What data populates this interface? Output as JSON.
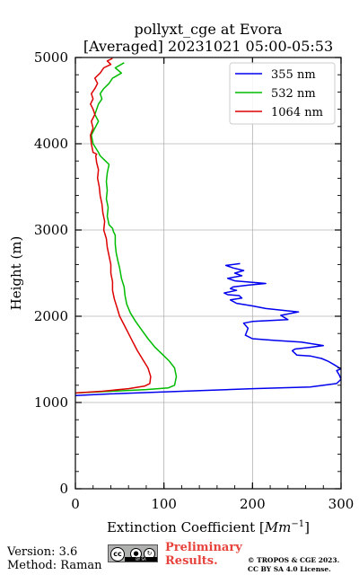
{
  "chart_data": {
    "type": "line",
    "title": "pollyxt_cge at Evora",
    "subtitle": "[Averaged] 20231021 05:00-05:53",
    "xlabel": "Extinction Coefficient [Mm⁻¹]",
    "ylabel": "Height (m)",
    "xlim": [
      0,
      300
    ],
    "ylim": [
      0,
      5000
    ],
    "xticks": [
      "0",
      "100",
      "200",
      "300"
    ],
    "yticks": [
      "0",
      "1000",
      "2000",
      "3000",
      "4000",
      "5000"
    ],
    "grid": true,
    "legend_position": "top-right",
    "series": [
      {
        "name": "355 nm",
        "color": "#0000ee",
        "x": [
          0,
          40,
          120,
          200,
          265,
          295,
          300,
          298,
          295,
          300,
          292,
          285,
          278,
          265,
          250,
          245,
          248,
          265,
          280,
          255,
          225,
          200,
          192,
          195,
          190,
          200,
          240,
          232,
          252,
          215,
          200,
          182,
          175,
          188,
          185,
          172,
          168,
          182,
          175,
          178,
          195,
          215,
          180,
          172,
          188,
          180,
          190,
          178,
          170,
          186
        ],
        "y": [
          1080,
          1100,
          1130,
          1160,
          1180,
          1220,
          1270,
          1320,
          1370,
          1390,
          1440,
          1480,
          1510,
          1540,
          1550,
          1600,
          1620,
          1640,
          1660,
          1700,
          1720,
          1740,
          1780,
          1860,
          1920,
          1940,
          1960,
          2010,
          2050,
          2090,
          2120,
          2150,
          2190,
          2210,
          2240,
          2250,
          2270,
          2300,
          2320,
          2340,
          2360,
          2380,
          2410,
          2440,
          2470,
          2500,
          2530,
          2560,
          2590,
          2610
        ]
      },
      {
        "name": "532 nm",
        "color": "#00bb00",
        "x": [
          0,
          40,
          80,
          105,
          112,
          114,
          112,
          106,
          98,
          90,
          82,
          75,
          68,
          62,
          58,
          56,
          55,
          52,
          50,
          48,
          46,
          45,
          45,
          43,
          42,
          38,
          36,
          37,
          35,
          36,
          35,
          36,
          38,
          32,
          28,
          26,
          20,
          18,
          22,
          26,
          22,
          24,
          26,
          30,
          28,
          32,
          38,
          42,
          52,
          45,
          55
        ],
        "y": [
          1110,
          1130,
          1150,
          1170,
          1200,
          1300,
          1400,
          1480,
          1560,
          1640,
          1740,
          1840,
          1940,
          2040,
          2140,
          2240,
          2340,
          2440,
          2560,
          2640,
          2740,
          2840,
          2940,
          2980,
          3020,
          3060,
          3160,
          3260,
          3360,
          3460,
          3560,
          3660,
          3760,
          3820,
          3860,
          3900,
          4000,
          4100,
          4180,
          4260,
          4340,
          4400,
          4460,
          4520,
          4580,
          4640,
          4700,
          4760,
          4820,
          4880,
          4940
        ]
      },
      {
        "name": "1064 nm",
        "color": "#dd0000",
        "x": [
          0,
          30,
          60,
          78,
          84,
          85,
          82,
          76,
          70,
          65,
          60,
          55,
          50,
          47,
          44,
          42,
          42,
          40,
          40,
          38,
          36,
          35,
          32,
          33,
          31,
          30,
          28,
          27,
          25,
          26,
          24,
          23,
          24,
          20,
          18,
          17,
          20,
          18,
          22,
          20,
          17,
          20,
          18,
          22,
          25,
          22,
          28,
          32,
          40,
          36,
          42
        ],
        "y": [
          1110,
          1130,
          1160,
          1190,
          1220,
          1300,
          1400,
          1500,
          1600,
          1700,
          1800,
          1900,
          2000,
          2100,
          2200,
          2300,
          2400,
          2500,
          2600,
          2700,
          2800,
          2900,
          3000,
          3100,
          3200,
          3300,
          3400,
          3500,
          3600,
          3700,
          3780,
          3860,
          3880,
          3900,
          4000,
          4100,
          4180,
          4260,
          4340,
          4400,
          4460,
          4520,
          4580,
          4640,
          4700,
          4760,
          4820,
          4880,
          4920,
          4960,
          4990
        ]
      }
    ]
  },
  "footer": {
    "version": "Version: 3.6",
    "method": "Method: Raman",
    "preliminary_line1": "Preliminary",
    "preliminary_line2": "Results.",
    "copyright_line1": "© TROPOS & CGE 2023.",
    "copyright_line2": "CC BY SA 4.0 License."
  },
  "license_badge": {
    "cc": "cc",
    "by": "BY",
    "sa": "SA"
  }
}
